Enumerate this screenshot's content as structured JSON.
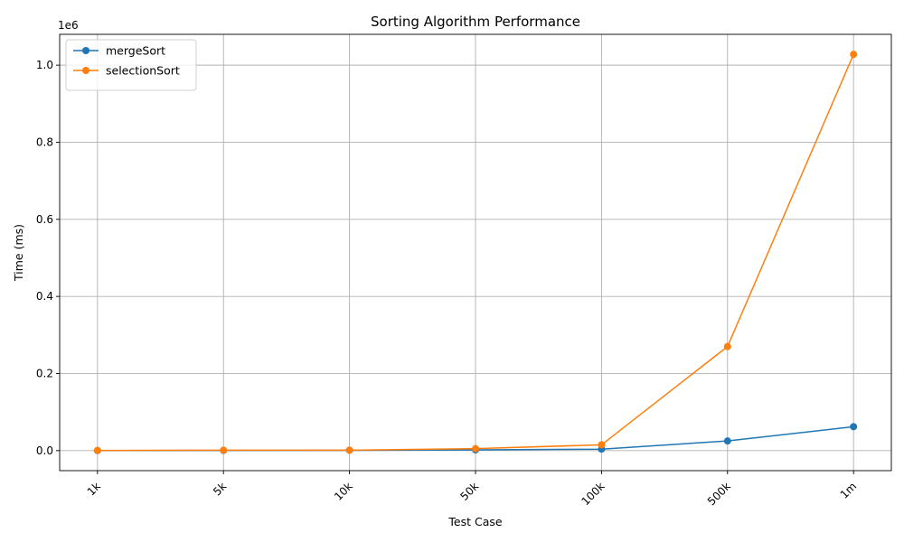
{
  "chart_data": {
    "type": "line",
    "title": "Sorting Algorithm Performance",
    "xlabel": "Test Case",
    "ylabel": "Time (ms)",
    "y_offset_label": "1e6",
    "categories": [
      "1k",
      "5k",
      "10k",
      "50k",
      "100k",
      "500k",
      "1m"
    ],
    "y_ticks": [
      0.0,
      0.2,
      0.4,
      0.6,
      0.8,
      1.0
    ],
    "y_tick_labels": [
      "0.0",
      "0.2",
      "0.4",
      "0.6",
      "0.8",
      "1.0"
    ],
    "ylim": [
      -0.052,
      1.08
    ],
    "y_scale": 1000000,
    "grid": true,
    "legend_position": "top-left",
    "x_tick_rotation": 45,
    "series": [
      {
        "name": "mergeSort",
        "color": "#1f77b4",
        "marker": "circle",
        "values": [
          90,
          400,
          800,
          1800,
          3800,
          25000,
          62000
        ]
      },
      {
        "name": "selectionSort",
        "color": "#ff7f0e",
        "marker": "circle",
        "values": [
          300,
          900,
          1000,
          5000,
          15000,
          270000,
          1028000
        ]
      }
    ]
  }
}
